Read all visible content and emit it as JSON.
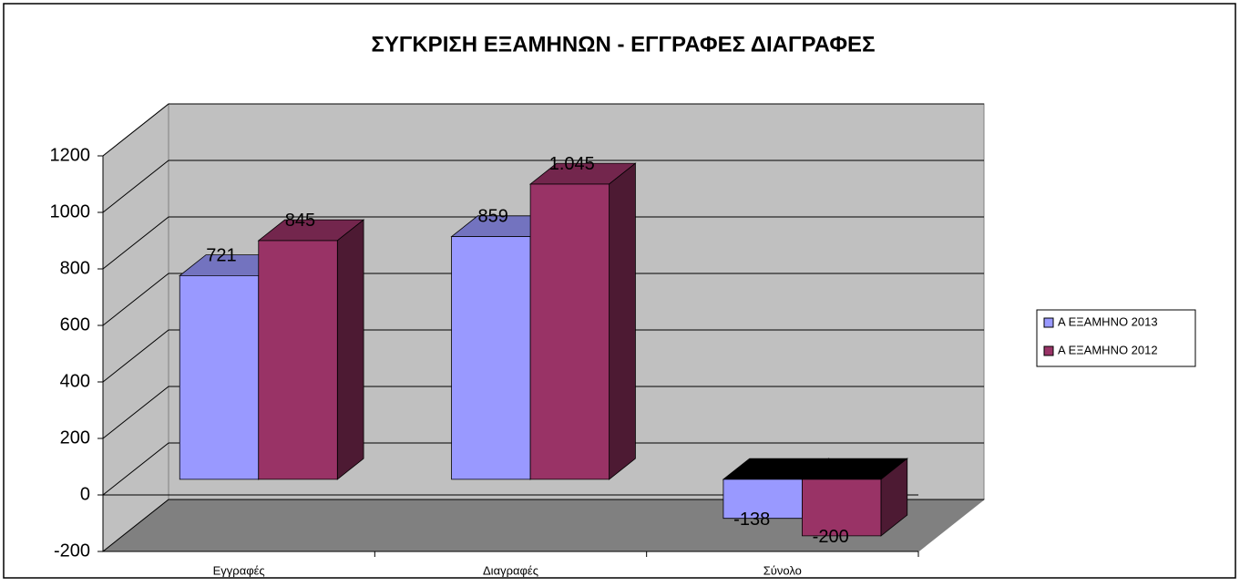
{
  "chart_data": {
    "type": "bar3d",
    "title": "ΣΥΓΚΡΙΣΗ ΕΞΑΜΗΝΩΝ - ΕΓΓΡΑΦΕΣ ΔΙΑΓΡΑΦΕΣ",
    "categories": [
      "Εγγραφές",
      "Διαγραφές",
      "Σύνολο"
    ],
    "series": [
      {
        "name": "Α ΕΞΑΜΗΝΟ 2013",
        "color": "#9999ff",
        "values": [
          721,
          859,
          -138
        ]
      },
      {
        "name": "Α ΕΞΑΜΗΝΟ 2012",
        "color": "#993366",
        "values": [
          845,
          1045,
          -200
        ],
        "value_labels": [
          "845",
          "1.045",
          "-200"
        ]
      }
    ],
    "ylim": [
      -200,
      1200
    ],
    "yticks": [
      -200,
      0,
      200,
      400,
      600,
      800,
      1000,
      1200
    ],
    "grid": true,
    "legend": "right"
  }
}
